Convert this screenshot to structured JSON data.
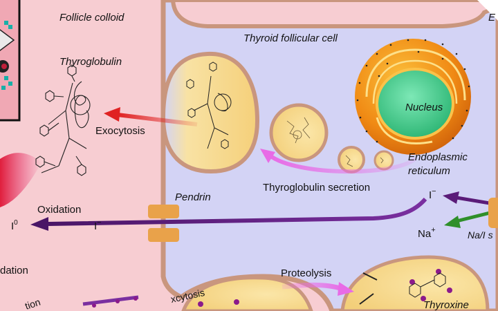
{
  "labels": {
    "follicle_colloid": "Follicle colloid",
    "thyroid_cell": "Thyroid follicular cell",
    "thyroglobulin": "Thyroglobulin",
    "exocytosis": "Exocytosis",
    "nucleus": "Nucleus",
    "er_line1": "Endoplasmic",
    "er_line2": "reticulum",
    "tg_secretion": "Thyroglobulin secretion",
    "pendrin": "Pendrin",
    "oxidation": "Oxidation",
    "iodine": "I",
    "iodine_sup": "0",
    "iodide_left": "I",
    "iodide_left_sup": "−",
    "iodide_right": "I",
    "iodide_right_sup": "−",
    "sodium": "Na",
    "sodium_sup": "+",
    "symporter": "Na/I s",
    "proteolysis": "Proteolysis",
    "thyroxine": "Thyroxine",
    "exocytosis_bottom": "xcytosis",
    "left_cut_1": "dation",
    "left_cut_2": "tion",
    "corner_cut": "E"
  },
  "colors": {
    "colloid": "#f7cdd2",
    "cell": "#d3d3f5",
    "membrane": "#c9967e",
    "vesicle": "#f7dc94",
    "nucleus": "#3fcc8a",
    "er_orange": "#f08a14",
    "iodide_arrow": "#5a1b78",
    "secretion_arrow": "#e86be6",
    "exocytosis_arrow": "#e02222",
    "na_arrow": "#2f8f2a",
    "pendrin": "#e9a24a"
  }
}
